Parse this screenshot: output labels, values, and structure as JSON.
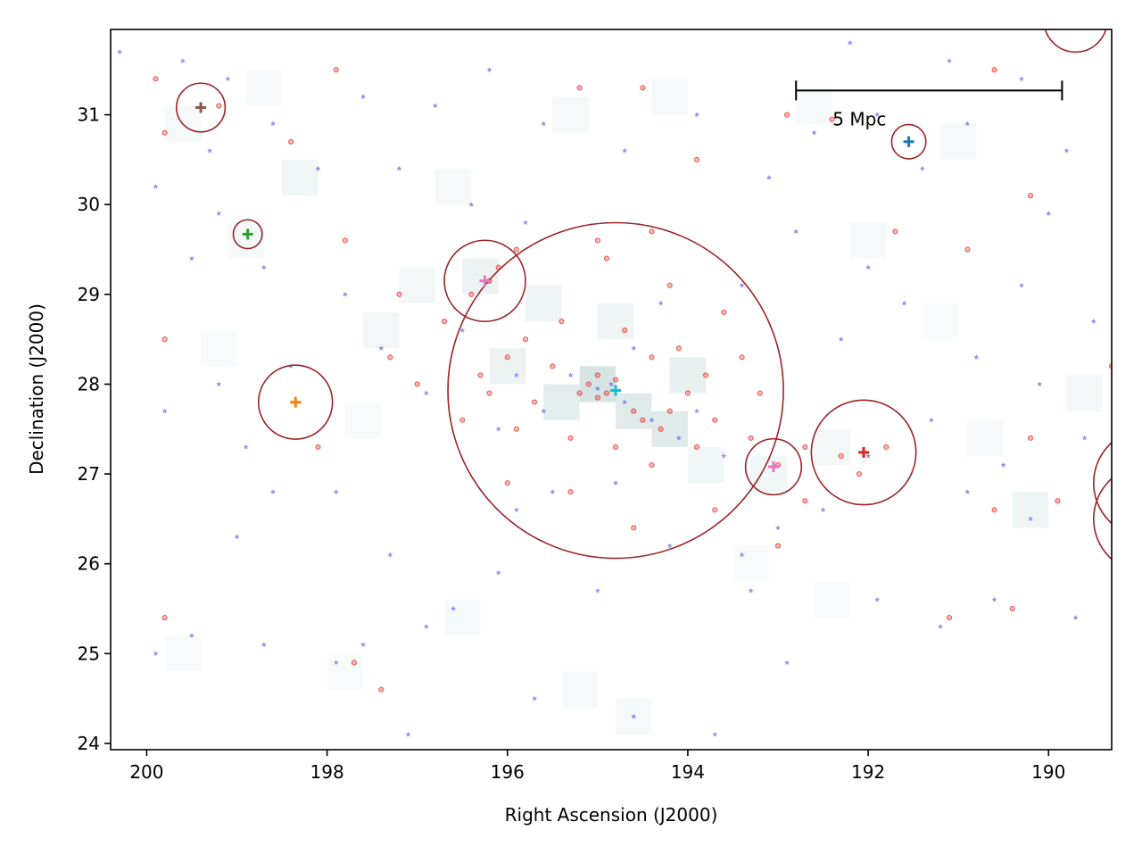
{
  "chart_data": {
    "type": "scatter",
    "title": "",
    "xlabel": "Right Ascension (J2000)",
    "ylabel": "Declination (J2000)",
    "xlim": [
      200.4,
      189.3
    ],
    "ylim": [
      23.93,
      31.95
    ],
    "x_inverted": true,
    "xticks": [
      200,
      198,
      196,
      194,
      192,
      190
    ],
    "yticks": [
      24,
      25,
      26,
      27,
      28,
      29,
      30,
      31
    ],
    "grid": false,
    "legend": "none",
    "scale_bar": {
      "label": "5 Mpc",
      "ra_start": 192.8,
      "ra_end": 189.85,
      "dec": 31.27
    },
    "density_map": {
      "color": "#7fa8a8",
      "cells": [
        {
          "ra": 195.0,
          "dec": 28.0,
          "level": 0.9
        },
        {
          "ra": 194.6,
          "dec": 27.7,
          "level": 0.7
        },
        {
          "ra": 194.2,
          "dec": 27.5,
          "level": 0.7
        },
        {
          "ra": 195.4,
          "dec": 27.8,
          "level": 0.6
        },
        {
          "ra": 194.0,
          "dec": 28.1,
          "level": 0.5
        },
        {
          "ra": 196.0,
          "dec": 28.2,
          "level": 0.4
        },
        {
          "ra": 196.3,
          "dec": 29.2,
          "level": 0.4
        },
        {
          "ra": 195.6,
          "dec": 28.9,
          "level": 0.35
        },
        {
          "ra": 194.8,
          "dec": 28.7,
          "level": 0.35
        },
        {
          "ra": 193.8,
          "dec": 27.1,
          "level": 0.3
        },
        {
          "ra": 193.1,
          "dec": 27.0,
          "level": 0.3
        },
        {
          "ra": 192.4,
          "dec": 27.3,
          "level": 0.25
        },
        {
          "ra": 197.4,
          "dec": 28.6,
          "level": 0.25
        },
        {
          "ra": 197.0,
          "dec": 29.1,
          "level": 0.25
        },
        {
          "ra": 198.3,
          "dec": 30.3,
          "level": 0.3
        },
        {
          "ra": 198.7,
          "dec": 31.3,
          "level": 0.2
        },
        {
          "ra": 199.6,
          "dec": 30.9,
          "level": 0.2
        },
        {
          "ra": 196.6,
          "dec": 30.2,
          "level": 0.2
        },
        {
          "ra": 195.3,
          "dec": 31.0,
          "level": 0.2
        },
        {
          "ra": 194.2,
          "dec": 31.2,
          "level": 0.2
        },
        {
          "ra": 192.6,
          "dec": 31.1,
          "level": 0.2
        },
        {
          "ra": 191.0,
          "dec": 30.7,
          "level": 0.2
        },
        {
          "ra": 190.2,
          "dec": 26.6,
          "level": 0.35
        },
        {
          "ra": 189.6,
          "dec": 27.9,
          "level": 0.25
        },
        {
          "ra": 190.7,
          "dec": 27.4,
          "level": 0.2
        },
        {
          "ra": 196.5,
          "dec": 25.4,
          "level": 0.2
        },
        {
          "ra": 195.2,
          "dec": 24.6,
          "level": 0.2
        },
        {
          "ra": 194.6,
          "dec": 24.3,
          "level": 0.2
        },
        {
          "ra": 197.8,
          "dec": 24.8,
          "level": 0.15
        },
        {
          "ra": 199.6,
          "dec": 25.0,
          "level": 0.15
        },
        {
          "ra": 198.9,
          "dec": 29.6,
          "level": 0.2
        },
        {
          "ra": 192.0,
          "dec": 29.6,
          "level": 0.2
        },
        {
          "ra": 191.2,
          "dec": 28.7,
          "level": 0.15
        },
        {
          "ra": 193.3,
          "dec": 26.0,
          "level": 0.15
        },
        {
          "ra": 192.4,
          "dec": 25.6,
          "level": 0.15
        },
        {
          "ra": 197.6,
          "dec": 27.6,
          "level": 0.15
        },
        {
          "ra": 199.2,
          "dec": 28.4,
          "level": 0.15
        }
      ]
    },
    "series": [
      {
        "marker": "circle",
        "color": "#e8302a",
        "points": [
          {
            "ra": 195.1,
            "dec": 28.0
          },
          {
            "ra": 195.0,
            "dec": 28.1
          },
          {
            "ra": 194.9,
            "dec": 27.9
          },
          {
            "ra": 195.2,
            "dec": 27.9
          },
          {
            "ra": 195.0,
            "dec": 27.85
          },
          {
            "ra": 194.8,
            "dec": 28.05
          },
          {
            "ra": 194.6,
            "dec": 27.7
          },
          {
            "ra": 194.5,
            "dec": 27.6
          },
          {
            "ra": 194.3,
            "dec": 27.5
          },
          {
            "ra": 194.2,
            "dec": 27.7
          },
          {
            "ra": 194.0,
            "dec": 27.9
          },
          {
            "ra": 193.8,
            "dec": 28.1
          },
          {
            "ra": 195.5,
            "dec": 28.2
          },
          {
            "ra": 195.7,
            "dec": 27.8
          },
          {
            "ra": 196.0,
            "dec": 28.3
          },
          {
            "ra": 196.2,
            "dec": 27.9
          },
          {
            "ra": 195.8,
            "dec": 28.5
          },
          {
            "ra": 195.4,
            "dec": 28.7
          },
          {
            "ra": 194.7,
            "dec": 28.6
          },
          {
            "ra": 194.4,
            "dec": 28.3
          },
          {
            "ra": 194.1,
            "dec": 28.4
          },
          {
            "ra": 193.7,
            "dec": 27.6
          },
          {
            "ra": 193.9,
            "dec": 27.3
          },
          {
            "ra": 194.4,
            "dec": 27.1
          },
          {
            "ra": 194.8,
            "dec": 27.3
          },
          {
            "ra": 195.3,
            "dec": 27.4
          },
          {
            "ra": 195.9,
            "dec": 27.5
          },
          {
            "ra": 196.3,
            "dec": 28.1
          },
          {
            "ra": 196.5,
            "dec": 27.6
          },
          {
            "ra": 196.1,
            "dec": 29.3
          },
          {
            "ra": 196.4,
            "dec": 29.0
          },
          {
            "ra": 196.2,
            "dec": 29.15
          },
          {
            "ra": 195.9,
            "dec": 29.5
          },
          {
            "ra": 194.9,
            "dec": 29.4
          },
          {
            "ra": 194.2,
            "dec": 29.1
          },
          {
            "ra": 193.6,
            "dec": 28.8
          },
          {
            "ra": 193.4,
            "dec": 28.3
          },
          {
            "ra": 193.2,
            "dec": 27.9
          },
          {
            "ra": 193.3,
            "dec": 27.4
          },
          {
            "ra": 193.0,
            "dec": 27.1
          },
          {
            "ra": 192.7,
            "dec": 27.3
          },
          {
            "ra": 192.3,
            "dec": 27.2
          },
          {
            "ra": 191.8,
            "dec": 27.3
          },
          {
            "ra": 192.1,
            "dec": 27.0
          },
          {
            "ra": 194.6,
            "dec": 26.4
          },
          {
            "ra": 195.3,
            "dec": 26.8
          },
          {
            "ra": 196.0,
            "dec": 26.9
          },
          {
            "ra": 193.7,
            "dec": 26.6
          },
          {
            "ra": 196.7,
            "dec": 28.7
          },
          {
            "ra": 197.3,
            "dec": 28.3
          },
          {
            "ra": 197.0,
            "dec": 28.0
          },
          {
            "ra": 197.2,
            "dec": 29.0
          },
          {
            "ra": 195.0,
            "dec": 29.6
          },
          {
            "ra": 194.4,
            "dec": 29.7
          },
          {
            "ra": 199.8,
            "dec": 30.8
          },
          {
            "ra": 199.9,
            "dec": 31.4
          },
          {
            "ra": 199.2,
            "dec": 31.1
          },
          {
            "ra": 197.9,
            "dec": 31.5
          },
          {
            "ra": 197.8,
            "dec": 29.6
          },
          {
            "ra": 198.4,
            "dec": 30.7
          },
          {
            "ra": 198.1,
            "dec": 27.3
          },
          {
            "ra": 199.8,
            "dec": 28.5
          },
          {
            "ra": 199.8,
            "dec": 25.4
          },
          {
            "ra": 197.7,
            "dec": 24.9
          },
          {
            "ra": 197.4,
            "dec": 24.6
          },
          {
            "ra": 195.2,
            "dec": 31.3
          },
          {
            "ra": 194.5,
            "dec": 31.3
          },
          {
            "ra": 193.9,
            "dec": 30.5
          },
          {
            "ra": 192.9,
            "dec": 31.0
          },
          {
            "ra": 192.4,
            "dec": 30.95
          },
          {
            "ra": 191.7,
            "dec": 29.7
          },
          {
            "ra": 190.9,
            "dec": 29.5
          },
          {
            "ra": 190.6,
            "dec": 31.5
          },
          {
            "ra": 190.2,
            "dec": 30.1
          },
          {
            "ra": 190.6,
            "dec": 26.6
          },
          {
            "ra": 190.2,
            "dec": 27.4
          },
          {
            "ra": 189.9,
            "dec": 26.7
          },
          {
            "ra": 189.3,
            "dec": 28.2
          },
          {
            "ra": 191.1,
            "dec": 25.4
          },
          {
            "ra": 190.4,
            "dec": 25.5
          },
          {
            "ra": 192.7,
            "dec": 26.7
          },
          {
            "ra": 193.0,
            "dec": 26.2
          },
          {
            "ra": 200.5,
            "dec": 31.4
          }
        ]
      },
      {
        "marker": "star",
        "color": "#3b3bdf",
        "points": [
          {
            "ra": 195.0,
            "dec": 27.95
          },
          {
            "ra": 194.85,
            "dec": 28.0
          },
          {
            "ra": 194.7,
            "dec": 27.8
          },
          {
            "ra": 194.4,
            "dec": 27.6
          },
          {
            "ra": 194.1,
            "dec": 27.4
          },
          {
            "ra": 195.3,
            "dec": 28.1
          },
          {
            "ra": 195.6,
            "dec": 27.7
          },
          {
            "ra": 195.9,
            "dec": 28.1
          },
          {
            "ra": 196.1,
            "dec": 27.5
          },
          {
            "ra": 194.6,
            "dec": 28.4
          },
          {
            "ra": 194.3,
            "dec": 28.9
          },
          {
            "ra": 193.9,
            "dec": 27.7
          },
          {
            "ra": 193.6,
            "dec": 27.2
          },
          {
            "ra": 194.8,
            "dec": 26.9
          },
          {
            "ra": 195.5,
            "dec": 26.8
          },
          {
            "ra": 196.5,
            "dec": 28.6
          },
          {
            "ra": 196.9,
            "dec": 27.9
          },
          {
            "ra": 197.4,
            "dec": 28.4
          },
          {
            "ra": 197.8,
            "dec": 29.0
          },
          {
            "ra": 198.1,
            "dec": 30.4
          },
          {
            "ra": 198.6,
            "dec": 30.9
          },
          {
            "ra": 199.1,
            "dec": 31.4
          },
          {
            "ra": 199.6,
            "dec": 31.6
          },
          {
            "ra": 199.3,
            "dec": 30.6
          },
          {
            "ra": 199.9,
            "dec": 30.2
          },
          {
            "ra": 200.3,
            "dec": 31.7
          },
          {
            "ra": 198.7,
            "dec": 29.3
          },
          {
            "ra": 199.2,
            "dec": 29.9
          },
          {
            "ra": 199.5,
            "dec": 29.4
          },
          {
            "ra": 198.4,
            "dec": 28.2
          },
          {
            "ra": 199.2,
            "dec": 28.0
          },
          {
            "ra": 199.8,
            "dec": 27.7
          },
          {
            "ra": 198.9,
            "dec": 27.3
          },
          {
            "ra": 198.6,
            "dec": 26.8
          },
          {
            "ra": 199.0,
            "dec": 26.3
          },
          {
            "ra": 197.9,
            "dec": 26.8
          },
          {
            "ra": 197.3,
            "dec": 26.1
          },
          {
            "ra": 196.6,
            "dec": 25.5
          },
          {
            "ra": 196.1,
            "dec": 25.9
          },
          {
            "ra": 196.9,
            "dec": 25.3
          },
          {
            "ra": 197.6,
            "dec": 25.1
          },
          {
            "ra": 198.7,
            "dec": 25.1
          },
          {
            "ra": 199.5,
            "dec": 25.2
          },
          {
            "ra": 199.9,
            "dec": 25.0
          },
          {
            "ra": 197.9,
            "dec": 24.9
          },
          {
            "ra": 197.1,
            "dec": 24.1
          },
          {
            "ra": 195.7,
            "dec": 24.5
          },
          {
            "ra": 194.6,
            "dec": 24.3
          },
          {
            "ra": 193.7,
            "dec": 24.1
          },
          {
            "ra": 192.9,
            "dec": 24.9
          },
          {
            "ra": 191.9,
            "dec": 25.6
          },
          {
            "ra": 191.2,
            "dec": 25.3
          },
          {
            "ra": 190.6,
            "dec": 25.6
          },
          {
            "ra": 189.7,
            "dec": 25.4
          },
          {
            "ra": 190.2,
            "dec": 26.5
          },
          {
            "ra": 190.5,
            "dec": 27.1
          },
          {
            "ra": 190.9,
            "dec": 26.8
          },
          {
            "ra": 191.3,
            "dec": 27.6
          },
          {
            "ra": 190.1,
            "dec": 28.0
          },
          {
            "ra": 189.6,
            "dec": 27.4
          },
          {
            "ra": 189.5,
            "dec": 28.7
          },
          {
            "ra": 190.3,
            "dec": 29.1
          },
          {
            "ra": 190.8,
            "dec": 28.3
          },
          {
            "ra": 191.6,
            "dec": 28.9
          },
          {
            "ra": 192.3,
            "dec": 28.5
          },
          {
            "ra": 192.0,
            "dec": 29.3
          },
          {
            "ra": 192.8,
            "dec": 29.7
          },
          {
            "ra": 193.4,
            "dec": 29.1
          },
          {
            "ra": 193.1,
            "dec": 30.3
          },
          {
            "ra": 192.6,
            "dec": 30.8
          },
          {
            "ra": 191.9,
            "dec": 31.0
          },
          {
            "ra": 191.4,
            "dec": 30.4
          },
          {
            "ra": 190.9,
            "dec": 30.9
          },
          {
            "ra": 190.3,
            "dec": 31.4
          },
          {
            "ra": 189.8,
            "dec": 30.6
          },
          {
            "ra": 190.0,
            "dec": 29.9
          },
          {
            "ra": 191.1,
            "dec": 31.6
          },
          {
            "ra": 192.2,
            "dec": 31.8
          },
          {
            "ra": 193.9,
            "dec": 31.0
          },
          {
            "ra": 194.7,
            "dec": 30.6
          },
          {
            "ra": 195.6,
            "dec": 30.9
          },
          {
            "ra": 196.2,
            "dec": 31.5
          },
          {
            "ra": 196.8,
            "dec": 31.1
          },
          {
            "ra": 196.4,
            "dec": 30.0
          },
          {
            "ra": 195.8,
            "dec": 29.8
          },
          {
            "ra": 197.2,
            "dec": 30.4
          },
          {
            "ra": 197.6,
            "dec": 31.2
          },
          {
            "ra": 192.0,
            "dec": 27.2
          },
          {
            "ra": 192.5,
            "dec": 26.6
          },
          {
            "ra": 193.0,
            "dec": 26.4
          },
          {
            "ra": 193.4,
            "dec": 26.1
          },
          {
            "ra": 193.3,
            "dec": 25.7
          },
          {
            "ra": 194.2,
            "dec": 26.2
          },
          {
            "ra": 195.0,
            "dec": 25.7
          },
          {
            "ra": 195.9,
            "dec": 26.6
          }
        ]
      }
    ],
    "circles": [
      {
        "ra": 194.8,
        "dec": 27.93,
        "r_deg": 1.86,
        "cross_color": "#17becf"
      },
      {
        "ra": 196.25,
        "dec": 29.15,
        "r_deg": 0.45,
        "cross_color": "#e377c2"
      },
      {
        "ra": 198.35,
        "dec": 27.8,
        "r_deg": 0.41,
        "cross_color": "#ff7f0e"
      },
      {
        "ra": 198.88,
        "dec": 29.67,
        "r_deg": 0.16,
        "cross_color": "#2ca02c"
      },
      {
        "ra": 199.4,
        "dec": 31.08,
        "r_deg": 0.27,
        "cross_color": "#8c564b"
      },
      {
        "ra": 191.55,
        "dec": 30.7,
        "r_deg": 0.19,
        "cross_color": "#1f77b4"
      },
      {
        "ra": 192.05,
        "dec": 27.24,
        "r_deg": 0.58,
        "cross_color": "#d62728"
      },
      {
        "ra": 193.05,
        "dec": 27.08,
        "r_deg": 0.31,
        "cross_color": "#e377c2"
      },
      {
        "ra": 189.7,
        "dec": 32.05,
        "r_deg": 0.35,
        "cross_color": "none"
      },
      {
        "ra": 188.9,
        "dec": 26.9,
        "r_deg": 0.6,
        "cross_color": "none"
      },
      {
        "ra": 188.9,
        "dec": 26.5,
        "r_deg": 0.6,
        "cross_color": "none"
      }
    ],
    "circle_color": "#9b2428"
  }
}
